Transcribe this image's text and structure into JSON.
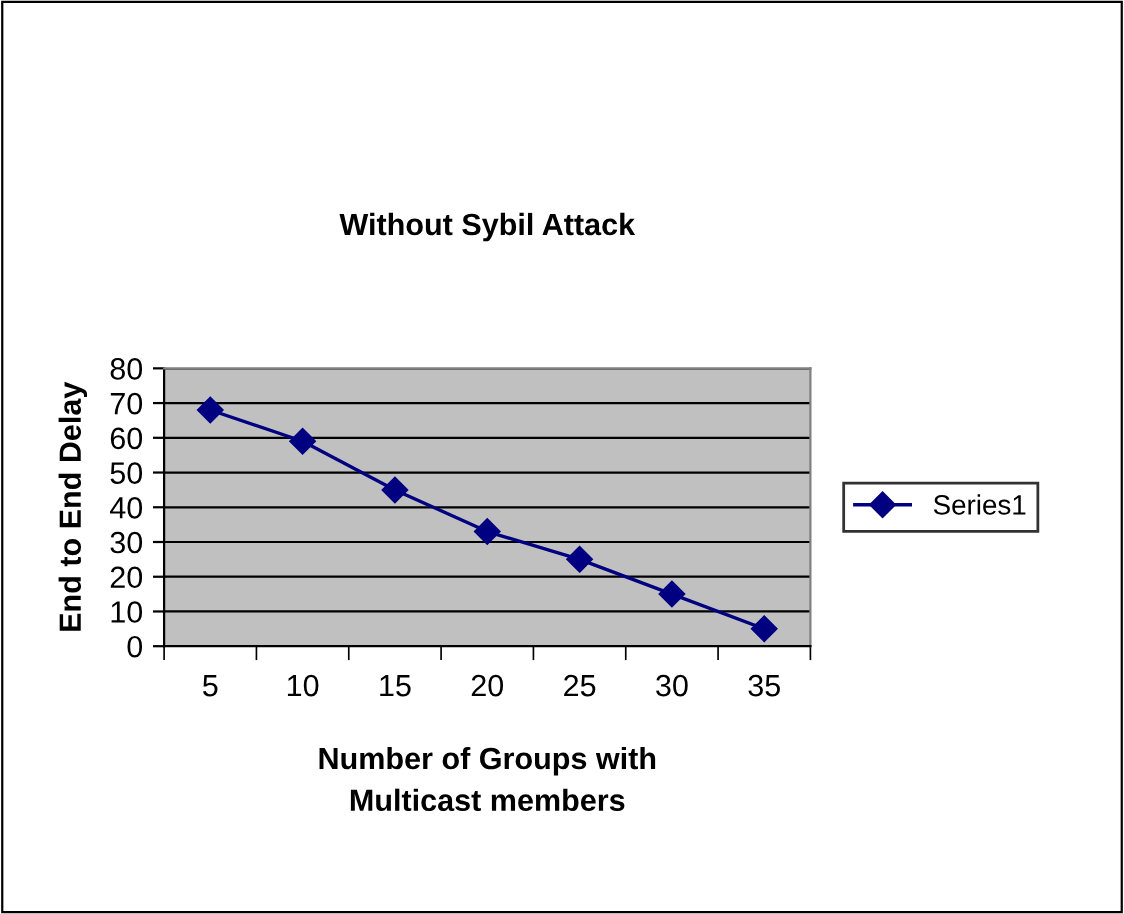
{
  "chart_data": {
    "type": "line",
    "title": "Without Sybil Attack",
    "xlabel": "Number of Groups with\nMulticast members",
    "ylabel": "End to End Delay",
    "categories": [
      "5",
      "10",
      "15",
      "20",
      "25",
      "30",
      "35"
    ],
    "series": [
      {
        "name": "Series1",
        "color": "#000080",
        "values": [
          68,
          59,
          45,
          33,
          25,
          15,
          5
        ]
      }
    ],
    "ylim": [
      0,
      80
    ],
    "yticks": [
      0,
      10,
      20,
      30,
      40,
      50,
      60,
      70,
      80
    ],
    "grid": "y",
    "legend": "right",
    "marker": "diamond",
    "line_style": "solid"
  }
}
